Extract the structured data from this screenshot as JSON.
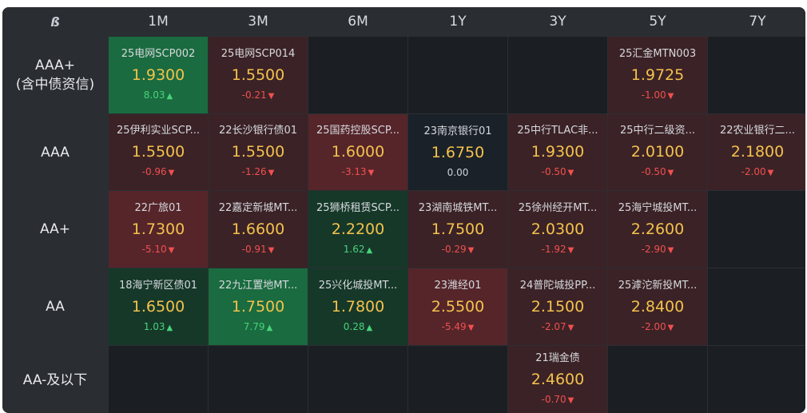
{
  "logo": "ß",
  "tenors": [
    "1M",
    "3M",
    "6M",
    "1Y",
    "3Y",
    "5Y",
    "7Y"
  ],
  "rows": [
    {
      "label": "AAA+\n(含中债资信)",
      "cells": [
        {
          "name": "25电网SCP002",
          "rate": "1.9300",
          "change": "8.03",
          "dir": "up",
          "shade": "green2"
        },
        {
          "name": "25电网SCP014",
          "rate": "1.5500",
          "change": "-0.21",
          "dir": "down",
          "shade": "red1"
        },
        null,
        null,
        null,
        {
          "name": "25汇金MTN003",
          "rate": "1.9725",
          "change": "-1.00",
          "dir": "down",
          "shade": "red1"
        },
        null
      ]
    },
    {
      "label": "AAA",
      "cells": [
        {
          "name": "25伊利实业SCP...",
          "rate": "1.5500",
          "change": "-0.96",
          "dir": "down",
          "shade": "red1"
        },
        {
          "name": "22长沙银行债01",
          "rate": "1.5500",
          "change": "-1.26",
          "dir": "down",
          "shade": "red1"
        },
        {
          "name": "25国药控股SCP...",
          "rate": "1.6000",
          "change": "-3.13",
          "dir": "down",
          "shade": "red2"
        },
        {
          "name": "23南京银行01",
          "rate": "1.6750",
          "change": "0.00",
          "dir": "flat",
          "shade": "neutral"
        },
        {
          "name": "25中行TLAC非...",
          "rate": "1.9300",
          "change": "-0.50",
          "dir": "down",
          "shade": "red1"
        },
        {
          "name": "25中行二级资...",
          "rate": "2.0100",
          "change": "-0.50",
          "dir": "down",
          "shade": "red1"
        },
        {
          "name": "22农业银行二...",
          "rate": "2.1800",
          "change": "-2.00",
          "dir": "down",
          "shade": "red1"
        }
      ]
    },
    {
      "label": "AA+",
      "cells": [
        {
          "name": "22广旅01",
          "rate": "1.7300",
          "change": "-5.10",
          "dir": "down",
          "shade": "red2"
        },
        {
          "name": "22嘉定新城MT...",
          "rate": "1.6600",
          "change": "-0.91",
          "dir": "down",
          "shade": "red1"
        },
        {
          "name": "25狮桥租赁SCP...",
          "rate": "2.2200",
          "change": "1.62",
          "dir": "up",
          "shade": "green1"
        },
        {
          "name": "23湖南城铁MT...",
          "rate": "1.7500",
          "change": "-0.29",
          "dir": "down",
          "shade": "red1"
        },
        {
          "name": "25徐州经开MT...",
          "rate": "2.0300",
          "change": "-1.92",
          "dir": "down",
          "shade": "red1"
        },
        {
          "name": "25海宁城投MT...",
          "rate": "2.2600",
          "change": "-2.90",
          "dir": "down",
          "shade": "red1"
        },
        null
      ]
    },
    {
      "label": "AA",
      "cells": [
        {
          "name": "18海宁新区债01",
          "rate": "1.6500",
          "change": "1.03",
          "dir": "up",
          "shade": "green1"
        },
        {
          "name": "22九江置地MT...",
          "rate": "1.7500",
          "change": "7.79",
          "dir": "up",
          "shade": "green2"
        },
        {
          "name": "25兴化城投MT...",
          "rate": "1.7800",
          "change": "0.28",
          "dir": "up",
          "shade": "green1"
        },
        {
          "name": "23潍经01",
          "rate": "2.5500",
          "change": "-5.49",
          "dir": "down",
          "shade": "red2"
        },
        {
          "name": "24普陀城投PP...",
          "rate": "2.1500",
          "change": "-2.07",
          "dir": "down",
          "shade": "red1"
        },
        {
          "name": "25滹沱新投MT...",
          "rate": "2.8400",
          "change": "-2.00",
          "dir": "down",
          "shade": "red1"
        },
        null
      ]
    },
    {
      "label": "AA-及以下",
      "cells": [
        null,
        null,
        null,
        null,
        {
          "name": "21瑞金债",
          "rate": "2.4600",
          "change": "-0.70",
          "dir": "down",
          "shade": "red1"
        },
        null,
        null
      ]
    }
  ],
  "colors": {
    "rate": "#f4c24d",
    "up": "#47d37b",
    "down": "#f0504f",
    "header_bg": "#2a2d32",
    "empty_bg": "#1b1f24"
  }
}
